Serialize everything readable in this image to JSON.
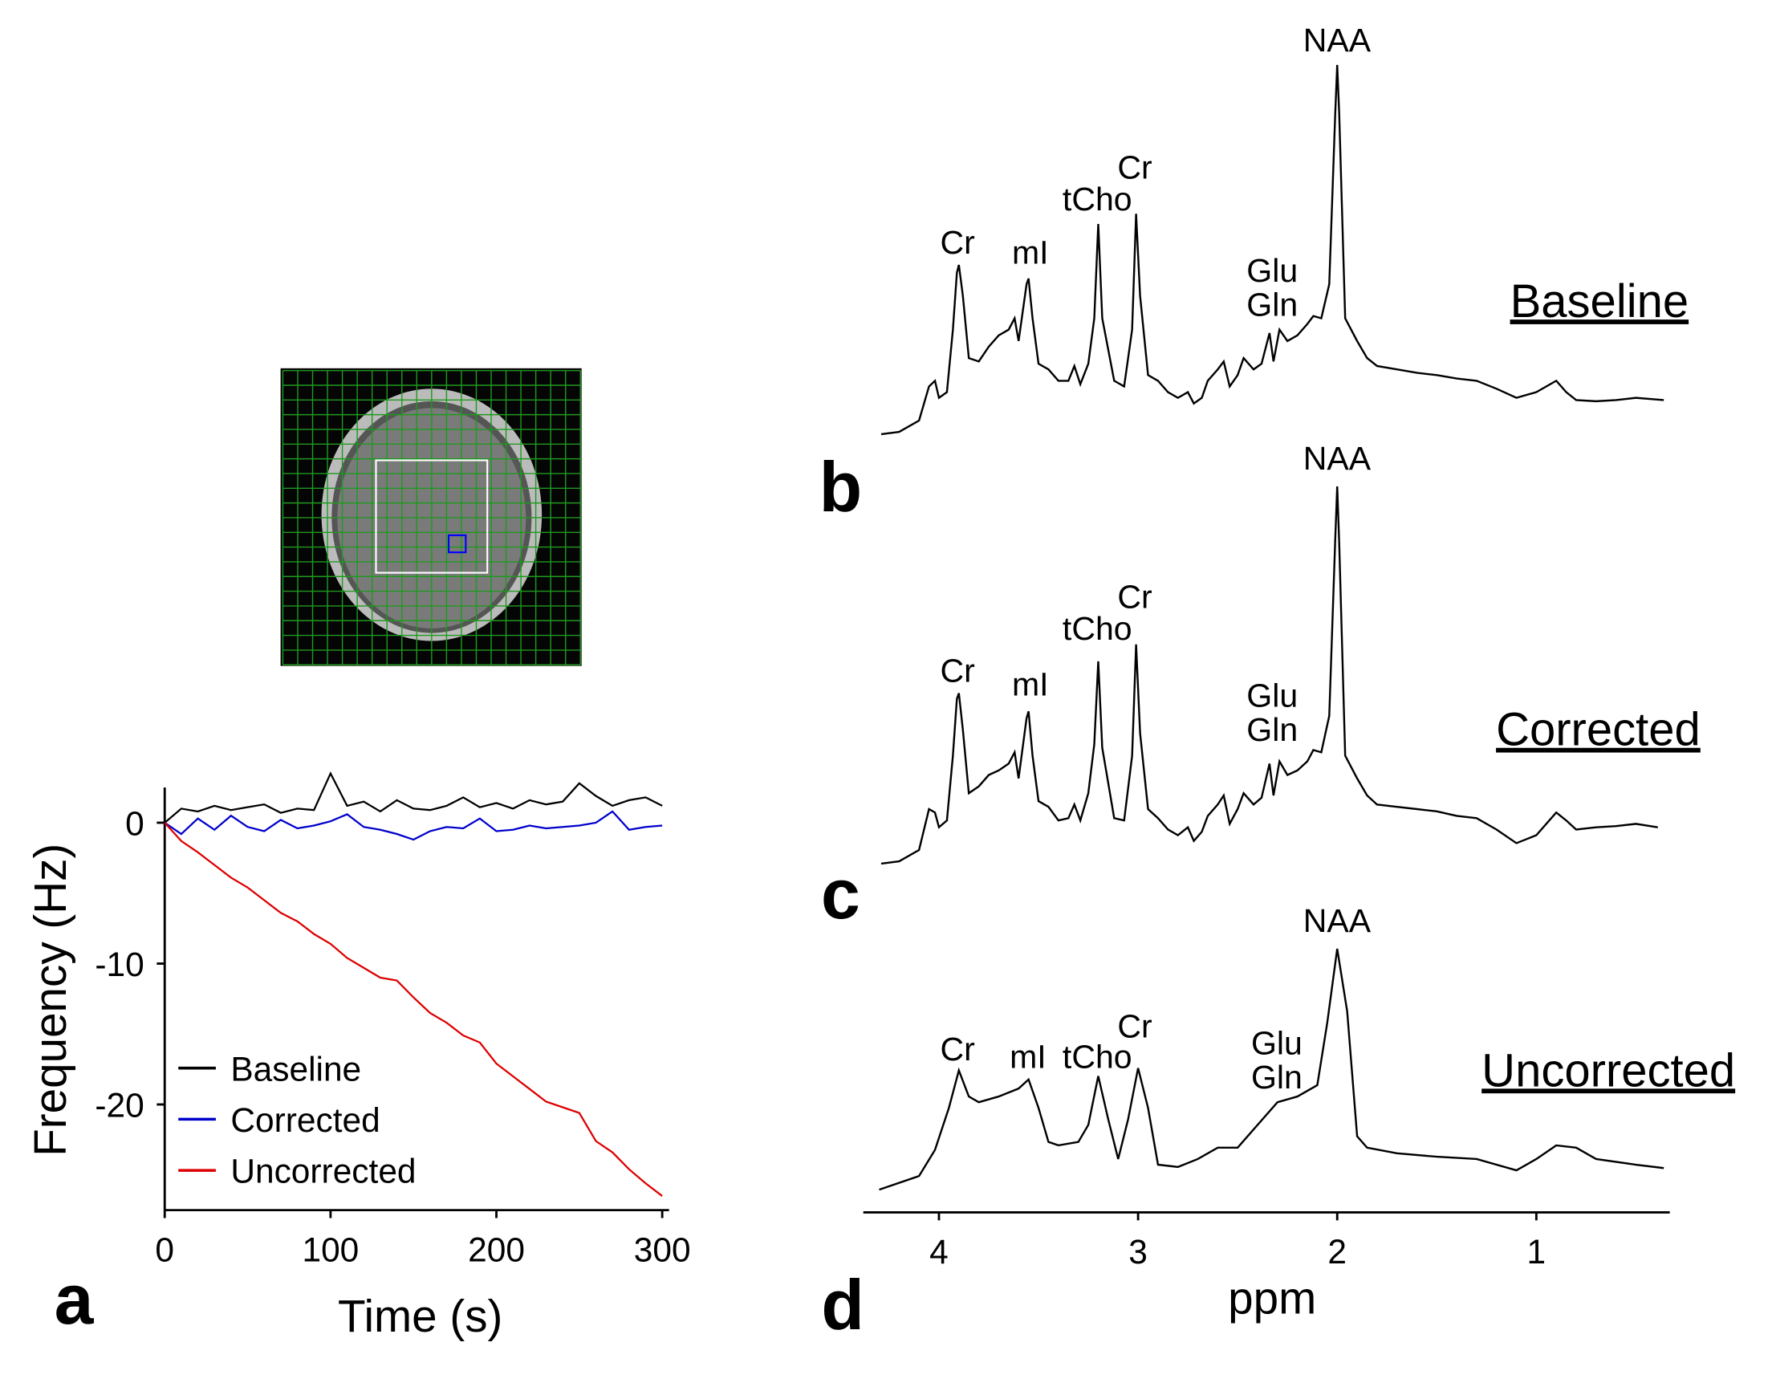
{
  "chart_data": [
    {
      "type": "line",
      "label": "a",
      "xlabel": "Time (s)",
      "ylabel": "Frequency (Hz)",
      "x": [
        0,
        10,
        20,
        30,
        40,
        50,
        60,
        70,
        80,
        90,
        100,
        110,
        120,
        130,
        140,
        150,
        160,
        170,
        180,
        190,
        200,
        210,
        220,
        230,
        240,
        250,
        260,
        270,
        280,
        290,
        300
      ],
      "series": [
        {
          "name": "Baseline",
          "color": "#000000",
          "values": [
            0,
            1,
            0.8,
            1.2,
            0.9,
            1.1,
            1.3,
            0.7,
            1.0,
            0.9,
            3.5,
            1.2,
            1.5,
            0.8,
            1.6,
            1.0,
            0.9,
            1.2,
            1.8,
            1.1,
            1.4,
            1.0,
            1.6,
            1.3,
            1.5,
            2.8,
            1.9,
            1.2,
            1.6,
            1.8,
            1.2
          ]
        },
        {
          "name": "Corrected",
          "color": "#0000cc",
          "values": [
            0,
            -0.8,
            0.3,
            -0.5,
            0.5,
            -0.3,
            -0.6,
            0.2,
            -0.4,
            -0.2,
            0.1,
            0.6,
            -0.3,
            -0.5,
            -0.8,
            -1.2,
            -0.6,
            -0.3,
            -0.4,
            0.3,
            -0.6,
            -0.5,
            -0.2,
            -0.4,
            -0.3,
            -0.2,
            0,
            0.8,
            -0.5,
            -0.3,
            -0.2
          ]
        },
        {
          "name": "Uncorrected",
          "color": "#dd0000",
          "values": [
            0,
            -1.3,
            -2.1,
            -3.0,
            -3.9,
            -4.6,
            -5.5,
            -6.4,
            -7.0,
            -7.9,
            -8.6,
            -9.6,
            -10.3,
            -11.0,
            -11.2,
            -12.4,
            -13.5,
            -14.2,
            -15.1,
            -15.6,
            -17.1,
            -18.0,
            -18.9,
            -19.8,
            -20.2,
            -20.6,
            -22.6,
            -23.4,
            -24.6,
            -25.6,
            -26.5
          ]
        }
      ],
      "xlim": [
        0,
        300
      ],
      "xticks": [
        0,
        100,
        200,
        300
      ],
      "ylim": [
        -27.5,
        2.5
      ],
      "yticks": [
        -20,
        -10,
        0
      ]
    },
    {
      "type": "line",
      "label": "b",
      "title": "Baseline",
      "color": "#000000",
      "annotations": [
        "Cr",
        "mI",
        "tCho",
        "Cr",
        "Glu",
        "Gln",
        "NAA"
      ],
      "x": [
        4.29,
        4.2,
        4.1,
        4.05,
        4.02,
        4.0,
        3.96,
        3.93,
        3.91,
        3.9,
        3.88,
        3.85,
        3.8,
        3.75,
        3.7,
        3.65,
        3.62,
        3.6,
        3.56,
        3.55,
        3.53,
        3.5,
        3.45,
        3.4,
        3.35,
        3.32,
        3.29,
        3.25,
        3.22,
        3.2,
        3.18,
        3.12,
        3.07,
        3.03,
        3.01,
        2.99,
        2.95,
        2.9,
        2.85,
        2.8,
        2.75,
        2.72,
        2.68,
        2.65,
        2.6,
        2.57,
        2.54,
        2.5,
        2.47,
        2.42,
        2.38,
        2.34,
        2.32,
        2.29,
        2.25,
        2.2,
        2.15,
        2.12,
        2.08,
        2.04,
        2.01,
        2.0,
        1.99,
        1.96,
        1.9,
        1.85,
        1.8,
        1.7,
        1.6,
        1.5,
        1.4,
        1.3,
        1.2,
        1.1,
        1.0,
        0.9,
        0.85,
        0.8,
        0.7,
        0.6,
        0.5,
        0.36
      ],
      "values": [
        8,
        10,
        20,
        50,
        55,
        40,
        45,
        100,
        150,
        157,
        130,
        75,
        72,
        85,
        95,
        100,
        110,
        90,
        140,
        145,
        110,
        70,
        65,
        55,
        55,
        68,
        52,
        70,
        110,
        193,
        110,
        55,
        50,
        100,
        202,
        130,
        60,
        55,
        45,
        40,
        45,
        35,
        40,
        55,
        65,
        72,
        50,
        60,
        75,
        65,
        70,
        97,
        72,
        100,
        90,
        95,
        105,
        112,
        110,
        140,
        290,
        333,
        290,
        110,
        90,
        75,
        68,
        65,
        62,
        60,
        57,
        55,
        48,
        40,
        45,
        55,
        45,
        38,
        37,
        38,
        40,
        38
      ],
      "xlim": [
        4.38,
        0.33
      ],
      "ylim": [
        0,
        340
      ]
    },
    {
      "type": "line",
      "label": "c",
      "title": "Corrected",
      "color": "#000000",
      "annotations": [
        "Cr",
        "mI",
        "tCho",
        "Cr",
        "Glu",
        "Gln",
        "NAA"
      ],
      "x": [
        4.29,
        4.2,
        4.1,
        4.05,
        4.02,
        4.0,
        3.96,
        3.93,
        3.91,
        3.9,
        3.88,
        3.85,
        3.8,
        3.75,
        3.7,
        3.65,
        3.62,
        3.6,
        3.56,
        3.55,
        3.53,
        3.5,
        3.45,
        3.4,
        3.35,
        3.32,
        3.29,
        3.25,
        3.22,
        3.2,
        3.18,
        3.12,
        3.07,
        3.03,
        3.01,
        2.99,
        2.95,
        2.9,
        2.85,
        2.8,
        2.75,
        2.72,
        2.68,
        2.65,
        2.6,
        2.57,
        2.54,
        2.5,
        2.47,
        2.42,
        2.38,
        2.34,
        2.32,
        2.29,
        2.25,
        2.2,
        2.15,
        2.12,
        2.08,
        2.04,
        2.01,
        2.0,
        1.99,
        1.96,
        1.9,
        1.85,
        1.8,
        1.7,
        1.6,
        1.5,
        1.4,
        1.3,
        1.2,
        1.1,
        1.0,
        0.9,
        0.85,
        0.8,
        0.7,
        0.6,
        0.5,
        0.39
      ],
      "values": [
        10,
        12,
        22,
        58,
        55,
        42,
        48,
        105,
        155,
        160,
        128,
        72,
        78,
        88,
        92,
        98,
        108,
        85,
        138,
        144,
        105,
        65,
        60,
        48,
        50,
        62,
        48,
        72,
        115,
        188,
        112,
        50,
        48,
        105,
        203,
        125,
        58,
        50,
        40,
        35,
        42,
        30,
        38,
        52,
        62,
        70,
        45,
        58,
        72,
        62,
        68,
        98,
        70,
        100,
        88,
        92,
        100,
        110,
        108,
        140,
        295,
        342,
        292,
        105,
        85,
        70,
        62,
        60,
        58,
        56,
        52,
        50,
        40,
        28,
        35,
        55,
        48,
        40,
        42,
        43,
        45,
        42
      ],
      "xlim": [
        4.38,
        0.33
      ],
      "ylim": [
        0,
        340
      ]
    },
    {
      "type": "line",
      "label": "d",
      "title": "Uncorrected",
      "color": "#000000",
      "xlabel": "ppm",
      "annotations": [
        "Cr",
        "mI",
        "tCho",
        "Cr",
        "Glu",
        "Gln",
        "NAA"
      ],
      "x": [
        4.3,
        4.1,
        4.02,
        3.95,
        3.9,
        3.85,
        3.8,
        3.7,
        3.6,
        3.55,
        3.5,
        3.45,
        3.4,
        3.3,
        3.25,
        3.2,
        3.15,
        3.1,
        3.05,
        3.0,
        2.95,
        2.9,
        2.8,
        2.7,
        2.6,
        2.5,
        2.4,
        2.3,
        2.2,
        2.1,
        2.05,
        2.0,
        1.95,
        1.9,
        1.85,
        1.7,
        1.5,
        1.3,
        1.1,
        1.0,
        0.9,
        0.8,
        0.7,
        0.5,
        0.36
      ],
      "values": [
        8,
        20,
        43,
        80,
        113,
        90,
        85,
        90,
        97,
        105,
        80,
        50,
        47,
        50,
        65,
        108,
        70,
        35,
        70,
        115,
        80,
        30,
        28,
        35,
        45,
        45,
        65,
        85,
        90,
        100,
        155,
        220,
        165,
        55,
        45,
        40,
        37,
        35,
        25,
        35,
        47,
        45,
        35,
        30,
        27
      ],
      "xlim": [
        4.38,
        0.33
      ],
      "ylim": [
        0,
        340
      ],
      "xticks": [
        4,
        3,
        2,
        1
      ]
    }
  ]
}
